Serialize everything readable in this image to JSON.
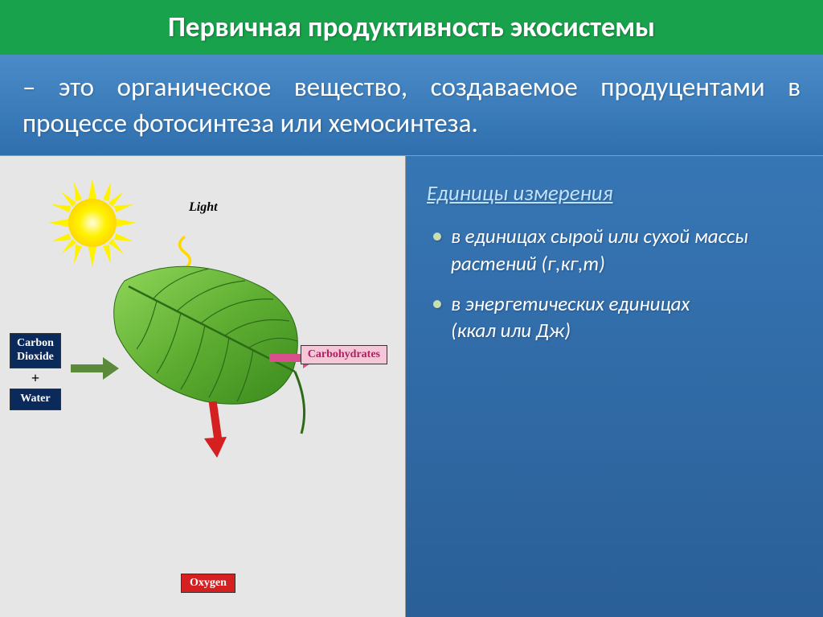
{
  "title": {
    "text": "Первичная продуктивность экосистемы",
    "fontsize": 35,
    "color": "#ffffff",
    "background": "#18a24b"
  },
  "definition": {
    "text": "– это органическое вещество, создаваемое продуцентами в процессе фотосинтеза или хемосинтеза.",
    "fontsize": 33,
    "color": "#ffffff",
    "background_gradient": [
      "#4a8bc8",
      "#2f6fae"
    ]
  },
  "diagram": {
    "background": "#e6e6e6",
    "sun": {
      "fill": "#fff200",
      "glow": "#fffb8a"
    },
    "light_label": "Light",
    "light_wave_color": "#ffd800",
    "leaf": {
      "fill_light": "#6fbf3e",
      "fill_dark": "#3a8a1e",
      "vein_color": "#2d6b16"
    },
    "input": {
      "co2_label": "Carbon\nDioxide",
      "plus": "+",
      "water_label": "Water",
      "box_bg": "#0b2a5c",
      "box_color": "#ffffff",
      "fontsize": 14
    },
    "arrow_in_color": "#5a8a3a",
    "carbohydrates": {
      "label": "Carbohydrates",
      "box_bg": "#f4c6d8",
      "box_color": "#b02060",
      "arrow_color": "#d94f8c",
      "fontsize": 14
    },
    "oxygen": {
      "label": "Oxygen",
      "box_bg": "#d42020",
      "box_color": "#ffffff",
      "arrow_color": "#d42020",
      "fontsize": 14
    }
  },
  "info": {
    "background_gradient": [
      "#3776b5",
      "#2a5f97"
    ],
    "heading": "Единицы измерения",
    "heading_fontsize": 27,
    "heading_color": "#bfe3ff",
    "bullets": [
      "в единицах сырой или сухой массы растений (г,кг,т)",
      "в энергетических единицах\n(ккал или Дж)"
    ],
    "bullet_fontsize": 25,
    "bullet_color": "#ffffff",
    "bullet_marker_color": "#c8deb0"
  }
}
